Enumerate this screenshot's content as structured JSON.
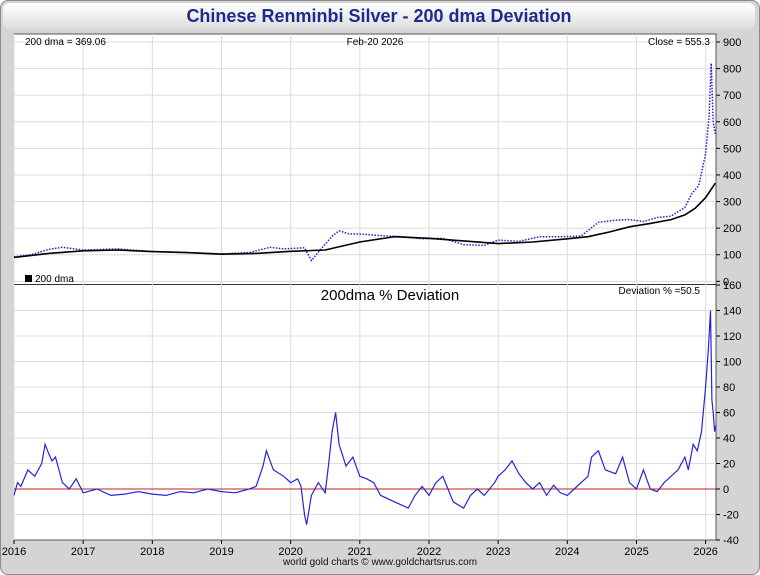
{
  "title": "Chinese Renminbi Silver - 200 dma Deviation",
  "footer": "world gold charts © www.goldchartsrus.com",
  "colors": {
    "price": "#1f1fd8",
    "dma": "#000000",
    "deviation": "#2424d8",
    "zero_line": "#c0201f",
    "grid": "#dcdcdc",
    "title": "#1e2a8c"
  },
  "chart_data": [
    {
      "type": "line",
      "name": "price-panel",
      "date": "Feb-20  2026",
      "dma_label": "200 dma = 369.06",
      "close_label": "Close = 555.3",
      "legend": "200 dma",
      "ylim": [
        -10,
        930
      ],
      "yticks": [
        0,
        100,
        200,
        300,
        400,
        500,
        600,
        700,
        800,
        900
      ],
      "xlim": [
        2016,
        2026.15
      ],
      "series": [
        {
          "name": "Price",
          "style": "dotted",
          "x": [
            2016.0,
            2016.25,
            2016.5,
            2016.7,
            2017.0,
            2017.5,
            2018.0,
            2018.5,
            2019.0,
            2019.4,
            2019.7,
            2019.9,
            2020.2,
            2020.3,
            2020.45,
            2020.6,
            2020.7,
            2020.85,
            2021.0,
            2021.3,
            2021.6,
            2021.9,
            2022.2,
            2022.5,
            2022.8,
            2023.0,
            2023.3,
            2023.6,
            2023.9,
            2024.2,
            2024.45,
            2024.7,
            2024.9,
            2025.1,
            2025.3,
            2025.5,
            2025.7,
            2025.8,
            2025.9,
            2026.0,
            2026.05,
            2026.08,
            2026.11,
            2026.14
          ],
          "values": [
            92,
            100,
            120,
            128,
            118,
            122,
            112,
            108,
            103,
            108,
            128,
            122,
            126,
            78,
            125,
            170,
            190,
            178,
            178,
            172,
            168,
            160,
            162,
            138,
            135,
            155,
            150,
            168,
            168,
            170,
            222,
            230,
            232,
            225,
            240,
            245,
            278,
            330,
            360,
            480,
            620,
            820,
            600,
            555
          ]
        },
        {
          "name": "200 dma",
          "style": "solid",
          "x": [
            2016.0,
            2016.5,
            2017.0,
            2017.5,
            2018.0,
            2018.5,
            2019.0,
            2019.5,
            2020.0,
            2020.5,
            2021.0,
            2021.5,
            2022.0,
            2022.5,
            2023.0,
            2023.5,
            2024.0,
            2024.3,
            2024.6,
            2024.9,
            2025.2,
            2025.5,
            2025.7,
            2025.85,
            2026.0,
            2026.14
          ],
          "values": [
            90,
            105,
            115,
            118,
            112,
            108,
            102,
            105,
            113,
            118,
            148,
            168,
            162,
            152,
            142,
            148,
            160,
            168,
            185,
            205,
            218,
            232,
            250,
            275,
            315,
            369
          ]
        }
      ]
    },
    {
      "type": "line",
      "name": "deviation-panel",
      "title": "200dma  %  Deviation",
      "deviation_label": "Deviation % =50.5",
      "xlabel": "",
      "ylabel": "",
      "ylim": [
        -40,
        160
      ],
      "yticks": [
        -40,
        -20,
        0,
        20,
        40,
        60,
        80,
        100,
        120,
        140,
        160
      ],
      "xlim": [
        2016,
        2026.15
      ],
      "xticks": [
        "2016",
        "2017",
        "2018",
        "2019",
        "2020",
        "2021",
        "2022",
        "2023",
        "2024",
        "2025",
        "2026"
      ],
      "zero_line": 0,
      "series": [
        {
          "name": "Deviation %",
          "x": [
            2016.0,
            2016.05,
            2016.1,
            2016.2,
            2016.3,
            2016.4,
            2016.45,
            2016.5,
            2016.55,
            2016.6,
            2016.7,
            2016.8,
            2016.9,
            2017.0,
            2017.2,
            2017.4,
            2017.6,
            2017.8,
            2018.0,
            2018.2,
            2018.4,
            2018.6,
            2018.8,
            2019.0,
            2019.2,
            2019.4,
            2019.5,
            2019.6,
            2019.65,
            2019.75,
            2019.9,
            2020.0,
            2020.1,
            2020.15,
            2020.2,
            2020.23,
            2020.3,
            2020.4,
            2020.5,
            2020.55,
            2020.6,
            2020.65,
            2020.7,
            2020.8,
            2020.9,
            2021.0,
            2021.1,
            2021.2,
            2021.3,
            2021.5,
            2021.7,
            2021.8,
            2021.9,
            2022.0,
            2022.1,
            2022.2,
            2022.35,
            2022.5,
            2022.6,
            2022.7,
            2022.8,
            2022.95,
            2023.0,
            2023.1,
            2023.2,
            2023.3,
            2023.4,
            2023.5,
            2023.6,
            2023.7,
            2023.8,
            2023.9,
            2024.0,
            2024.1,
            2024.2,
            2024.3,
            2024.35,
            2024.45,
            2024.55,
            2024.7,
            2024.8,
            2024.9,
            2025.0,
            2025.1,
            2025.2,
            2025.3,
            2025.4,
            2025.5,
            2025.6,
            2025.7,
            2025.75,
            2025.82,
            2025.88,
            2025.94,
            2026.0,
            2026.04,
            2026.07,
            2026.09,
            2026.11,
            2026.13,
            2026.15
          ],
          "values": [
            -5,
            5,
            2,
            15,
            10,
            20,
            35,
            28,
            22,
            25,
            5,
            0,
            8,
            -3,
            0,
            -5,
            -4,
            -2,
            -4,
            -5,
            -2,
            -3,
            0,
            -2,
            -3,
            0,
            2,
            18,
            30,
            15,
            10,
            5,
            8,
            2,
            -20,
            -28,
            -5,
            5,
            -3,
            20,
            45,
            60,
            35,
            18,
            25,
            10,
            8,
            5,
            -5,
            -10,
            -15,
            -5,
            2,
            -5,
            5,
            10,
            -10,
            -15,
            -5,
            0,
            -5,
            5,
            10,
            15,
            22,
            12,
            5,
            0,
            5,
            -5,
            3,
            -3,
            -5,
            0,
            5,
            10,
            25,
            30,
            15,
            12,
            25,
            5,
            0,
            15,
            0,
            -2,
            5,
            10,
            15,
            25,
            15,
            35,
            30,
            45,
            80,
            110,
            140,
            70,
            60,
            45,
            50
          ]
        }
      ]
    }
  ]
}
